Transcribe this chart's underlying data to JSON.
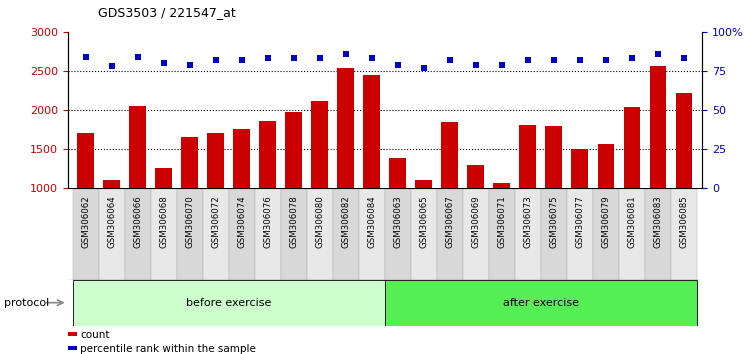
{
  "title": "GDS3503 / 221547_at",
  "samples": [
    "GSM306062",
    "GSM306064",
    "GSM306066",
    "GSM306068",
    "GSM306070",
    "GSM306072",
    "GSM306074",
    "GSM306076",
    "GSM306078",
    "GSM306080",
    "GSM306082",
    "GSM306084",
    "GSM306063",
    "GSM306065",
    "GSM306067",
    "GSM306069",
    "GSM306071",
    "GSM306073",
    "GSM306075",
    "GSM306077",
    "GSM306079",
    "GSM306081",
    "GSM306083",
    "GSM306085"
  ],
  "counts": [
    1700,
    1100,
    2050,
    1250,
    1650,
    1700,
    1750,
    1850,
    1970,
    2110,
    2540,
    2450,
    1380,
    1100,
    1840,
    1290,
    1060,
    1810,
    1790,
    1500,
    1560,
    2040,
    2560,
    2210
  ],
  "percentiles": [
    84,
    78,
    84,
    80,
    79,
    82,
    82,
    83,
    83,
    83,
    86,
    83,
    79,
    77,
    82,
    79,
    79,
    82,
    82,
    82,
    82,
    83,
    86,
    83
  ],
  "group_labels": [
    "before exercise",
    "after exercise"
  ],
  "before_count": 12,
  "after_count": 12,
  "before_color": "#ccffcc",
  "after_color": "#55ee55",
  "bar_color": "#cc0000",
  "dot_color": "#0000cc",
  "ylim_left": [
    1000,
    3000
  ],
  "ylim_right": [
    0,
    100
  ],
  "yticks_left": [
    1000,
    1500,
    2000,
    2500,
    3000
  ],
  "yticks_right": [
    0,
    25,
    50,
    75,
    100
  ],
  "ytick_labels_right": [
    "0",
    "25",
    "50",
    "75",
    "100%"
  ],
  "bg_color": "#ffffff",
  "protocol_label": "protocol"
}
